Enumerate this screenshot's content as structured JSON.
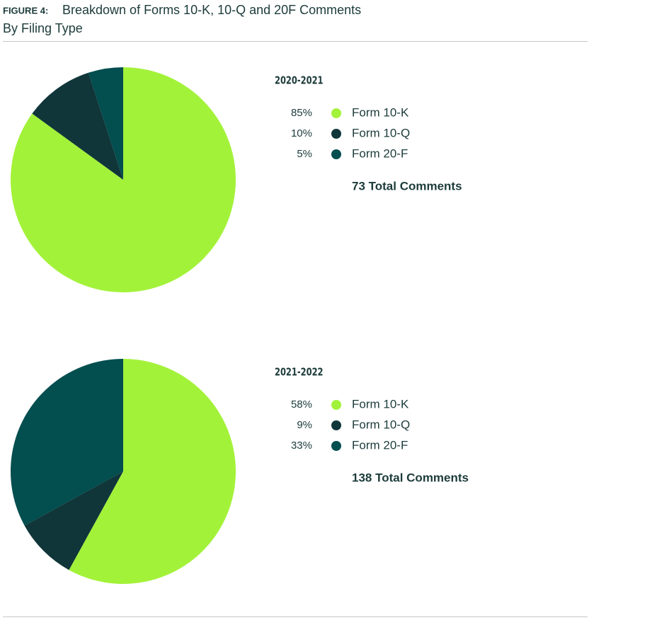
{
  "figure_label": "FIGURE 4:",
  "title": "Breakdown of Forms 10-K, 10-Q and 20F Comments",
  "subtitle": "By Filing Type",
  "chart_data": [
    {
      "type": "pie",
      "title": "2020-2021",
      "categories": [
        "Form 10-K",
        "Form 10-Q",
        "Form 20-F"
      ],
      "values": [
        85,
        10,
        5
      ],
      "value_labels": [
        "85%",
        "10%",
        "5%"
      ],
      "colors": [
        "#a3f23a",
        "#10363a",
        "#034e4f"
      ],
      "annotation": "73 Total Comments"
    },
    {
      "type": "pie",
      "title": "2021-2022",
      "categories": [
        "Form 10-K",
        "Form 10-Q",
        "Form 20-F"
      ],
      "values": [
        58,
        9,
        33
      ],
      "value_labels": [
        "58%",
        "9%",
        "33%"
      ],
      "colors": [
        "#a3f23a",
        "#10363a",
        "#034e4f"
      ],
      "annotation": "138 Total Comments"
    }
  ]
}
